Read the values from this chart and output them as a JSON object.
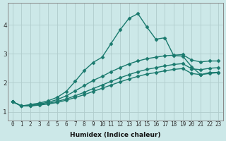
{
  "xlabel": "Humidex (Indice chaleur)",
  "ylabel": "",
  "background_color": "#cce8e8",
  "grid_color": "#b0cccc",
  "line_color": "#1a7a6e",
  "xlim": [
    -0.5,
    23.5
  ],
  "ylim": [
    0.7,
    4.75
  ],
  "xticks": [
    0,
    1,
    2,
    3,
    4,
    5,
    6,
    7,
    8,
    9,
    10,
    11,
    12,
    13,
    14,
    15,
    16,
    17,
    18,
    19,
    20,
    21,
    22,
    23
  ],
  "yticks": [
    1,
    2,
    3,
    4
  ],
  "series": [
    {
      "x": [
        0,
        1,
        2,
        3,
        4,
        5,
        6,
        7,
        8,
        9,
        10,
        11,
        12,
        13,
        14,
        15,
        16,
        17,
        18,
        19,
        20,
        21,
        22,
        23
      ],
      "y": [
        1.35,
        1.2,
        1.25,
        1.3,
        1.38,
        1.5,
        1.7,
        2.05,
        2.42,
        2.7,
        2.88,
        3.35,
        3.82,
        4.22,
        4.38,
        3.92,
        3.5,
        3.55,
        2.93,
        2.92,
        2.55,
        2.28,
        2.32,
        2.35
      ]
    },
    {
      "x": [
        0,
        1,
        2,
        3,
        4,
        5,
        6,
        7,
        8,
        9,
        10,
        11,
        12,
        13,
        14,
        15,
        16,
        17,
        18,
        19,
        20,
        21,
        22,
        23
      ],
      "y": [
        1.35,
        1.2,
        1.22,
        1.27,
        1.33,
        1.42,
        1.55,
        1.72,
        1.9,
        2.08,
        2.22,
        2.38,
        2.52,
        2.65,
        2.75,
        2.83,
        2.88,
        2.93,
        2.95,
        2.97,
        2.78,
        2.72,
        2.75,
        2.75
      ]
    },
    {
      "x": [
        0,
        1,
        2,
        3,
        4,
        5,
        6,
        7,
        8,
        9,
        10,
        11,
        12,
        13,
        14,
        15,
        16,
        17,
        18,
        19,
        20,
        21,
        22,
        23
      ],
      "y": [
        1.35,
        1.2,
        1.2,
        1.25,
        1.29,
        1.36,
        1.44,
        1.55,
        1.67,
        1.8,
        1.92,
        2.05,
        2.17,
        2.28,
        2.38,
        2.46,
        2.52,
        2.58,
        2.63,
        2.66,
        2.48,
        2.45,
        2.5,
        2.52
      ]
    },
    {
      "x": [
        0,
        1,
        2,
        3,
        4,
        5,
        6,
        7,
        8,
        9,
        10,
        11,
        12,
        13,
        14,
        15,
        16,
        17,
        18,
        19,
        20,
        21,
        22,
        23
      ],
      "y": [
        1.35,
        1.2,
        1.2,
        1.23,
        1.27,
        1.32,
        1.4,
        1.49,
        1.59,
        1.7,
        1.81,
        1.92,
        2.03,
        2.13,
        2.22,
        2.3,
        2.35,
        2.41,
        2.46,
        2.49,
        2.32,
        2.28,
        2.35,
        2.36
      ]
    }
  ]
}
